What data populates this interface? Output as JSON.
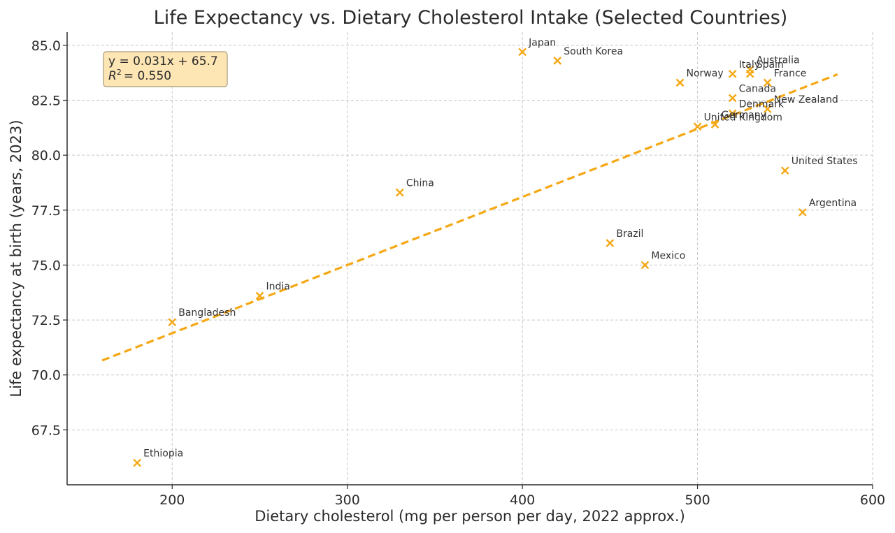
{
  "chart_data": {
    "type": "scatter",
    "title": "Life Expectancy vs. Dietary Cholesterol Intake (Selected Countries)",
    "xlabel": "Dietary cholesterol (mg per person per day, 2022 approx.)",
    "ylabel": "Life expectancy at birth (years, 2023)",
    "xlim": [
      140,
      600
    ],
    "ylim": [
      65,
      85.6
    ],
    "xticks": [
      200,
      300,
      400,
      500,
      600
    ],
    "yticks": [
      67.5,
      70.0,
      72.5,
      75.0,
      77.5,
      80.0,
      82.5,
      85.0
    ],
    "grid": true,
    "marker": "x",
    "colors": {
      "points": "#f5a814",
      "trend": "#f5a814",
      "annotation_bg": "#fde5b4",
      "annotation_border": "#a89a7a"
    },
    "points": [
      {
        "label": "Japan",
        "x": 400,
        "y": 84.7
      },
      {
        "label": "South Korea",
        "x": 420,
        "y": 84.3
      },
      {
        "label": "Australia",
        "x": 530,
        "y": 83.9
      },
      {
        "label": "Italy",
        "x": 520,
        "y": 83.7
      },
      {
        "label": "Spain",
        "x": 530,
        "y": 83.7
      },
      {
        "label": "France",
        "x": 540,
        "y": 83.3
      },
      {
        "label": "Norway",
        "x": 490,
        "y": 83.3
      },
      {
        "label": "Canada",
        "x": 520,
        "y": 82.6
      },
      {
        "label": "New Zealand",
        "x": 540,
        "y": 82.1
      },
      {
        "label": "Denmark",
        "x": 520,
        "y": 81.9
      },
      {
        "label": "Germany",
        "x": 510,
        "y": 81.4
      },
      {
        "label": "United Kingdom",
        "x": 500,
        "y": 81.3
      },
      {
        "label": "United States",
        "x": 550,
        "y": 79.3
      },
      {
        "label": "China",
        "x": 330,
        "y": 78.3
      },
      {
        "label": "Argentina",
        "x": 560,
        "y": 77.4
      },
      {
        "label": "Brazil",
        "x": 450,
        "y": 76.0
      },
      {
        "label": "Mexico",
        "x": 470,
        "y": 75.0
      },
      {
        "label": "India",
        "x": 250,
        "y": 73.6
      },
      {
        "label": "Bangladesh",
        "x": 200,
        "y": 72.4
      },
      {
        "label": "Ethiopia",
        "x": 180,
        "y": 66.0
      }
    ],
    "trendline": {
      "slope": 0.031,
      "intercept": 65.7,
      "x_range": [
        160,
        580
      ],
      "equation": "y = 0.031x + 65.7",
      "r2_label": "= 0.550",
      "r2_symbol": "R",
      "r2_superscript": "2"
    }
  }
}
